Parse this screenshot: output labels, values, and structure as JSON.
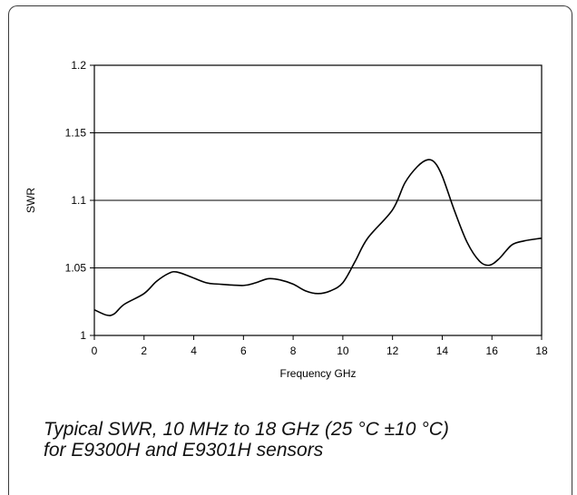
{
  "chart_data": {
    "type": "line",
    "title": "",
    "xlabel": "Frequency GHz",
    "ylabel": "SWR",
    "xlim": [
      0,
      18
    ],
    "ylim": [
      1,
      1.2
    ],
    "xticks": [
      "0",
      "2",
      "4",
      "6",
      "8",
      "10",
      "12",
      "14",
      "16",
      "18"
    ],
    "yticks": [
      "1",
      "1.05",
      "1.1",
      "1.15",
      "1.2"
    ],
    "grid": "horizontal",
    "series": [
      {
        "x": [
          0,
          0.5,
          0.8,
          1.2,
          2,
          2.5,
          3,
          3.3,
          3.8,
          4.5,
          5,
          6,
          6.5,
          7,
          7.5,
          8,
          8.5,
          9,
          9.5,
          10,
          10.5,
          11,
          12,
          12.5,
          13,
          13.4,
          13.7,
          14,
          14.5,
          15,
          15.5,
          15.9,
          16.3,
          16.8,
          17.3,
          18
        ],
        "values": [
          1.019,
          1.015,
          1.016,
          1.023,
          1.031,
          1.04,
          1.046,
          1.047,
          1.044,
          1.039,
          1.038,
          1.037,
          1.039,
          1.042,
          1.041,
          1.038,
          1.033,
          1.031,
          1.033,
          1.039,
          1.055,
          1.072,
          1.093,
          1.113,
          1.125,
          1.13,
          1.128,
          1.118,
          1.092,
          1.069,
          1.055,
          1.052,
          1.057,
          1.067,
          1.07,
          1.072
        ]
      }
    ]
  },
  "caption": {
    "line1": "Typical SWR, 10 MHz to 18 GHz (25 °C ±10 °C)",
    "line2": "for E9300H and E9301H sensors"
  }
}
